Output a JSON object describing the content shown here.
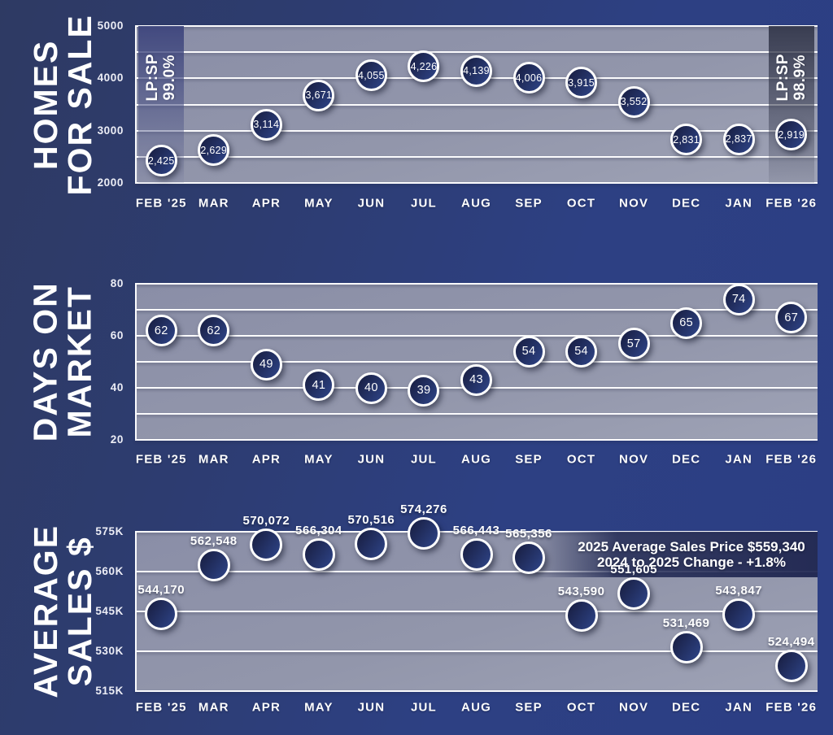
{
  "months": [
    "FEB '25",
    "MAR",
    "APR",
    "MAY",
    "JUN",
    "JUL",
    "AUG",
    "SEP",
    "OCT",
    "NOV",
    "DEC",
    "JAN",
    "FEB '26"
  ],
  "colors": {
    "background_accent": "#2c3e84",
    "plot_background": "#9296ab",
    "point_fill_dark": "#1a2147",
    "point_fill_light": "#2c4080",
    "gridline": "#fbfbfd",
    "text": "#ffffff"
  },
  "chart_data": [
    {
      "type": "scatter",
      "name": "homes-for-sale",
      "title": "HOMES FOR SALE",
      "title_lines": [
        "HOMES",
        "FOR SALE"
      ],
      "xlabel": "",
      "ylabel": "",
      "ylim": [
        2000,
        5000
      ],
      "grid_step": 500,
      "y_ticks": [
        {
          "v": 5000,
          "label": "5000"
        },
        {
          "v": 4000,
          "label": "4000"
        },
        {
          "v": 3000,
          "label": "3000"
        },
        {
          "v": 2000,
          "label": "2000"
        }
      ],
      "categories": [
        "FEB '25",
        "MAR",
        "APR",
        "MAY",
        "JUN",
        "JUL",
        "AUG",
        "SEP",
        "OCT",
        "NOV",
        "DEC",
        "JAN",
        "FEB '26"
      ],
      "values": [
        2425,
        2629,
        3114,
        3671,
        4055,
        4226,
        4139,
        4006,
        3915,
        3552,
        2831,
        2837,
        2919
      ],
      "point_labels": [
        "2,425",
        "2,629",
        "3,114",
        "3,671",
        "4,055",
        "4,226",
        "4,139",
        "4,006",
        "3,915",
        "3,552",
        "2,831",
        "2,837",
        "2,919"
      ],
      "label_position": "inside",
      "highlights": [
        {
          "column": 0,
          "lines": [
            "LP:SP",
            "99.0%"
          ],
          "variant": "blue"
        },
        {
          "column": 12,
          "lines": [
            "LP:SP",
            "98.9%"
          ],
          "variant": "dark"
        }
      ]
    },
    {
      "type": "scatter",
      "name": "days-on-market",
      "title": "DAYS ON MARKET",
      "title_lines": [
        "DAYS ON",
        "MARKET"
      ],
      "xlabel": "",
      "ylabel": "",
      "ylim": [
        20,
        80
      ],
      "grid_step": 10,
      "y_ticks": [
        {
          "v": 80,
          "label": "80"
        },
        {
          "v": 60,
          "label": "60"
        },
        {
          "v": 40,
          "label": "40"
        },
        {
          "v": 20,
          "label": "20"
        }
      ],
      "categories": [
        "FEB '25",
        "MAR",
        "APR",
        "MAY",
        "JUN",
        "JUL",
        "AUG",
        "SEP",
        "OCT",
        "NOV",
        "DEC",
        "JAN",
        "FEB '26"
      ],
      "values": [
        62,
        62,
        49,
        41,
        40,
        39,
        43,
        54,
        54,
        57,
        65,
        74,
        67
      ],
      "point_labels": [
        "62",
        "62",
        "49",
        "41",
        "40",
        "39",
        "43",
        "54",
        "54",
        "57",
        "65",
        "74",
        "67"
      ],
      "label_position": "inside",
      "highlights": []
    },
    {
      "type": "scatter",
      "name": "average-sales",
      "title": "AVERAGE SALES $",
      "title_lines": [
        "AVERAGE",
        "SALES $"
      ],
      "xlabel": "",
      "ylabel": "",
      "ylim": [
        515000,
        575000
      ],
      "grid_step": 15000,
      "y_ticks": [
        {
          "v": 575000,
          "label": "575K"
        },
        {
          "v": 560000,
          "label": "560K"
        },
        {
          "v": 545000,
          "label": "545K"
        },
        {
          "v": 530000,
          "label": "530K"
        },
        {
          "v": 515000,
          "label": "515K"
        }
      ],
      "categories": [
        "FEB '25",
        "MAR",
        "APR",
        "MAY",
        "JUN",
        "JUL",
        "AUG",
        "SEP",
        "OCT",
        "NOV",
        "DEC",
        "JAN",
        "FEB '26"
      ],
      "values": [
        544170,
        562548,
        570072,
        566304,
        570516,
        574276,
        566443,
        565356,
        543590,
        551605,
        531469,
        543847,
        524494
      ],
      "point_labels": [
        "544,170",
        "562,548",
        "570,072",
        "566,304",
        "570,516",
        "574,276",
        "566,443",
        "565,356",
        "543,590",
        "551,605",
        "531,469",
        "543,847",
        "524,494"
      ],
      "label_position": "above",
      "annotation_lines": [
        "2025 Average Sales Price $559,340",
        "2024 to 2025 Change - +1.8%"
      ],
      "highlights": []
    }
  ]
}
